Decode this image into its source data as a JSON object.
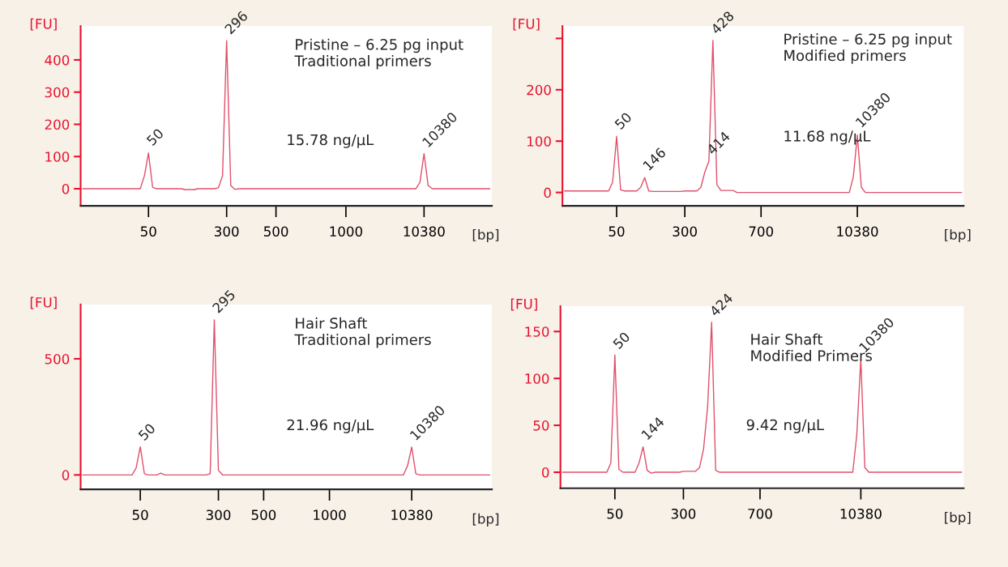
{
  "chart_data": [
    {
      "type": "line",
      "xlabel": "[bp]",
      "ylabel": "[FU]",
      "ylim": [
        -53,
        505
      ],
      "yticks": [
        0,
        100,
        200,
        300,
        400
      ],
      "categories": [
        null,
        null,
        null,
        null,
        null,
        null,
        null,
        null,
        null,
        null,
        null,
        null,
        null,
        null,
        null,
        null,
        "50",
        null,
        null,
        null,
        null,
        null,
        null,
        null,
        null,
        null,
        null,
        null,
        null,
        null,
        null,
        null,
        null,
        null,
        null,
        "300",
        null,
        null,
        null,
        null,
        null,
        null,
        null,
        null,
        null,
        null,
        null,
        "500",
        null,
        null,
        null,
        null,
        null,
        null,
        null,
        null,
        null,
        null,
        null,
        null,
        null,
        null,
        null,
        null,
        "1000",
        null,
        null,
        null,
        null,
        null,
        null,
        null,
        null,
        null,
        null,
        null,
        null,
        null,
        null,
        null,
        null,
        null,
        null,
        "10380",
        null,
        null,
        null,
        null,
        null,
        null,
        null,
        null,
        null,
        null,
        null,
        null,
        null,
        null,
        null,
        null
      ],
      "series": [
        {
          "color": "#e0506a",
          "values": [
            0,
            0,
            0,
            0,
            0,
            0,
            0,
            0,
            0,
            0,
            0,
            0,
            0,
            0,
            0,
            40,
            111,
            5,
            0,
            0,
            0,
            0,
            0,
            0,
            0,
            -3,
            -2,
            -3,
            0,
            0,
            0,
            0,
            0,
            3,
            40,
            460,
            10,
            -2,
            0,
            0,
            0,
            0,
            0,
            0,
            0,
            0,
            0,
            0,
            0,
            0,
            0,
            0,
            0,
            0,
            0,
            0,
            0,
            0,
            0,
            0,
            0,
            0,
            0,
            0,
            0,
            0,
            0,
            0,
            0,
            0,
            0,
            0,
            0,
            0,
            0,
            0,
            0,
            0,
            0,
            0,
            0,
            0,
            20,
            109,
            10,
            0,
            0,
            0,
            0,
            0,
            0,
            0,
            0,
            0,
            0,
            0,
            0,
            0,
            0,
            0
          ]
        }
      ],
      "annotations": [
        "Pristine – 6.25 pg input\nTraditional primers",
        "15.78 ng/µL",
        "50",
        "296",
        "10380"
      ]
    },
    {
      "type": "line",
      "xlabel": "[bp]",
      "ylabel": "[FU]",
      "ylim": [
        -26,
        324
      ],
      "yticks": [
        0,
        100,
        200,
        {
          "value": 300,
          "label": null
        }
      ],
      "categories": [
        null,
        null,
        null,
        null,
        null,
        null,
        null,
        null,
        null,
        null,
        null,
        null,
        null,
        "50",
        null,
        null,
        null,
        null,
        null,
        null,
        null,
        null,
        null,
        null,
        null,
        null,
        null,
        null,
        null,
        null,
        "300",
        null,
        null,
        null,
        null,
        null,
        null,
        null,
        null,
        null,
        null,
        null,
        null,
        null,
        null,
        null,
        null,
        null,
        null,
        "700",
        null,
        null,
        null,
        null,
        null,
        null,
        null,
        null,
        null,
        null,
        null,
        null,
        null,
        null,
        null,
        null,
        null,
        null,
        null,
        null,
        null,
        null,
        null,
        "10380",
        null,
        null,
        null,
        null,
        null,
        null,
        null,
        null,
        null,
        null,
        null,
        null,
        null,
        null,
        null,
        null,
        null,
        null,
        null,
        null,
        null,
        null,
        null,
        null,
        null,
        null
      ],
      "series": [
        {
          "color": "#e0506a",
          "values": [
            3,
            3,
            3,
            3,
            3,
            3,
            3,
            3,
            3,
            3,
            3,
            3,
            20,
            109,
            5,
            3,
            3,
            3,
            3,
            10,
            29,
            3,
            2,
            2,
            2,
            2,
            2,
            2,
            2,
            2,
            3,
            3,
            3,
            3,
            10,
            40,
            61,
            296,
            15,
            4,
            4,
            4,
            4,
            0,
            0,
            0,
            0,
            0,
            0,
            0,
            0,
            0,
            0,
            0,
            0,
            0,
            0,
            0,
            0,
            0,
            0,
            0,
            0,
            0,
            0,
            0,
            0,
            0,
            0,
            0,
            0,
            0,
            30,
            112,
            10,
            0,
            0,
            0,
            0,
            0,
            0,
            0,
            0,
            0,
            0,
            0,
            0,
            0,
            0,
            0,
            0,
            0,
            0,
            0,
            0,
            0,
            0,
            0,
            0,
            0
          ]
        }
      ],
      "annotations": [
        "Pristine – 6.25 pg input\nModified primers",
        "11.68 ng/µL",
        "50",
        "146",
        "414",
        "428",
        "10380"
      ]
    },
    {
      "type": "line",
      "xlabel": "[bp]",
      "ylabel": "[FU]",
      "ylim": [
        -62,
        734
      ],
      "yticks": [
        0,
        500
      ],
      "categories": [
        null,
        null,
        null,
        null,
        null,
        null,
        null,
        null,
        null,
        null,
        null,
        null,
        null,
        null,
        "50",
        null,
        null,
        null,
        null,
        null,
        null,
        null,
        null,
        null,
        null,
        null,
        null,
        null,
        null,
        null,
        null,
        null,
        null,
        "300",
        null,
        null,
        null,
        null,
        null,
        null,
        null,
        null,
        null,
        null,
        "500",
        null,
        null,
        null,
        null,
        null,
        null,
        null,
        null,
        null,
        null,
        null,
        null,
        null,
        null,
        null,
        "1000",
        null,
        null,
        null,
        null,
        null,
        null,
        null,
        null,
        null,
        null,
        null,
        null,
        null,
        null,
        null,
        null,
        null,
        null,
        null,
        "10380",
        null,
        null,
        null,
        null,
        null,
        null,
        null,
        null,
        null,
        null,
        null,
        null,
        null,
        null,
        null,
        null,
        null,
        null,
        null
      ],
      "series": [
        {
          "color": "#e0506a",
          "values": [
            0,
            0,
            0,
            0,
            0,
            0,
            0,
            0,
            0,
            0,
            0,
            0,
            0,
            30,
            121,
            5,
            0,
            0,
            0,
            8,
            0,
            0,
            0,
            0,
            0,
            0,
            0,
            0,
            0,
            0,
            0,
            5,
            668,
            20,
            0,
            0,
            0,
            0,
            0,
            0,
            0,
            0,
            0,
            0,
            0,
            0,
            0,
            0,
            0,
            0,
            0,
            0,
            0,
            0,
            0,
            0,
            0,
            0,
            0,
            0,
            0,
            0,
            0,
            0,
            0,
            0,
            0,
            0,
            0,
            0,
            0,
            0,
            0,
            0,
            0,
            0,
            0,
            0,
            0,
            40,
            120,
            5,
            0,
            0,
            0,
            0,
            0,
            0,
            0,
            0,
            0,
            0,
            0,
            0,
            0,
            0,
            0,
            0,
            0,
            0
          ]
        }
      ],
      "annotations": [
        "Hair Shaft\nTraditional primers",
        "21.96 ng/µL",
        "50",
        "295",
        "10380"
      ]
    },
    {
      "type": "line",
      "xlabel": "[bp]",
      "ylabel": "[FU]",
      "ylim": [
        -17,
        177
      ],
      "yticks": [
        0,
        50,
        100,
        150
      ],
      "categories": [
        null,
        null,
        null,
        null,
        null,
        null,
        null,
        null,
        null,
        null,
        null,
        null,
        null,
        "50",
        null,
        null,
        null,
        null,
        null,
        null,
        null,
        null,
        null,
        null,
        null,
        null,
        null,
        null,
        null,
        null,
        "300",
        null,
        null,
        null,
        null,
        null,
        null,
        null,
        null,
        null,
        null,
        null,
        null,
        null,
        null,
        null,
        null,
        null,
        null,
        "700",
        null,
        null,
        null,
        null,
        null,
        null,
        null,
        null,
        null,
        null,
        null,
        null,
        null,
        null,
        null,
        null,
        null,
        null,
        null,
        null,
        null,
        null,
        null,
        null,
        "10380",
        null,
        null,
        null,
        null,
        null,
        null,
        null,
        null,
        null,
        null,
        null,
        null,
        null,
        null,
        null,
        null,
        null,
        null,
        null,
        null,
        null,
        null,
        null,
        null,
        null
      ],
      "series": [
        {
          "color": "#e0506a",
          "values": [
            0,
            0,
            0,
            0,
            0,
            0,
            0,
            0,
            0,
            0,
            0,
            0,
            10,
            125,
            3,
            0,
            0,
            0,
            0,
            10,
            27,
            2,
            -1,
            0,
            0,
            0,
            0,
            0,
            0,
            0,
            1,
            1,
            1,
            1,
            5,
            25,
            70,
            160,
            2,
            0,
            0,
            0,
            0,
            0,
            0,
            0,
            0,
            0,
            0,
            0,
            0,
            0,
            0,
            0,
            0,
            0,
            0,
            0,
            0,
            0,
            0,
            0,
            0,
            0,
            0,
            0,
            0,
            0,
            0,
            0,
            0,
            0,
            0,
            40,
            121,
            5,
            0,
            0,
            0,
            0,
            0,
            0,
            0,
            0,
            0,
            0,
            0,
            0,
            0,
            0,
            0,
            0,
            0,
            0,
            0,
            0,
            0,
            0,
            0,
            0
          ]
        }
      ],
      "annotations": [
        "Hair Shaft\nModified Primers",
        "9.42 ng/µL",
        "50",
        "144",
        "424",
        "10380"
      ]
    }
  ]
}
